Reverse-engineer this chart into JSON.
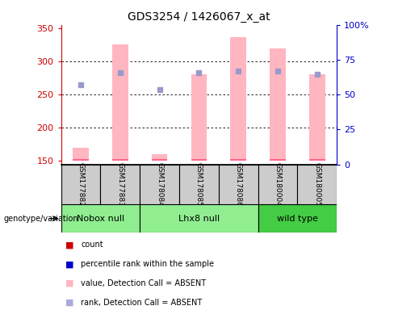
{
  "title": "GDS3254 / 1426067_x_at",
  "samples": [
    "GSM177882",
    "GSM177883",
    "GSM178084",
    "GSM178085",
    "GSM178086",
    "GSM180004",
    "GSM180005"
  ],
  "pink_bar_values": [
    170,
    325,
    160,
    280,
    337,
    320,
    280
  ],
  "blue_square_values": [
    265,
    283,
    258,
    283,
    285,
    285,
    280
  ],
  "ylim_left": [
    145,
    355
  ],
  "ylim_right": [
    0,
    100
  ],
  "yticks_left": [
    150,
    200,
    250,
    300,
    350
  ],
  "yticks_right": [
    0,
    25,
    50,
    75,
    100
  ],
  "pink_color": "#FFB6C1",
  "dark_pink_color": "#CC0000",
  "blue_sq_color": "#9999CC",
  "dark_blue_color": "#0000CC",
  "left_axis_color": "#CC0000",
  "right_axis_color": "#0000CC",
  "sample_box_color": "#CCCCCC",
  "bar_bottom": 150,
  "group_defs": [
    [
      0,
      1,
      "Nobox null",
      "#90EE90"
    ],
    [
      2,
      4,
      "Lhx8 null",
      "#90EE90"
    ],
    [
      5,
      6,
      "wild type",
      "#44CC44"
    ]
  ],
  "legend_items": [
    [
      "#CC0000",
      "count"
    ],
    [
      "#0000CC",
      "percentile rank within the sample"
    ],
    [
      "#FFB6C1",
      "value, Detection Call = ABSENT"
    ],
    [
      "#AAAADD",
      "rank, Detection Call = ABSENT"
    ]
  ]
}
